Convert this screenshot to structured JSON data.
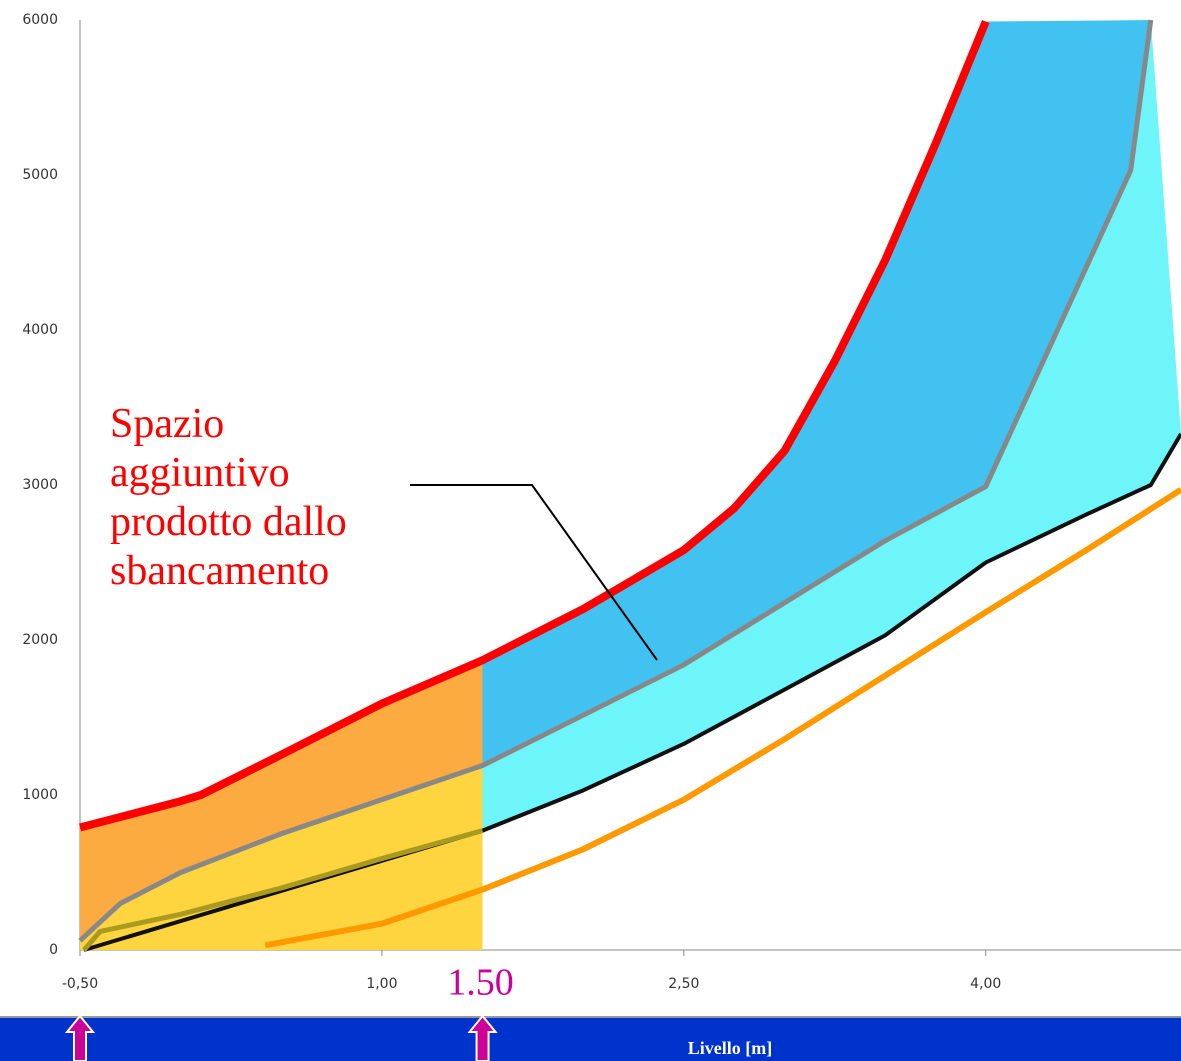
{
  "chart_data": {
    "type": "line",
    "xlabel": "Livello [m]",
    "xlim": [
      -0.5,
      4.97
    ],
    "ylim": [
      0,
      6000
    ],
    "xticks": [
      {
        "value": -0.5,
        "label": "-0,50"
      },
      {
        "value": 1.0,
        "label": "1,00"
      },
      {
        "value": 2.5,
        "label": "2,50"
      },
      {
        "value": 4.0,
        "label": "4,00"
      }
    ],
    "yticks": [
      0,
      1000,
      2000,
      3000,
      4000,
      5000,
      6000
    ],
    "grid": true,
    "series": [
      {
        "color": "#ff0000",
        "x": [
          -0.5,
          0,
          0.1,
          0.5,
          1.0,
          1.5,
          2.0,
          2.5,
          2.75,
          3.0,
          3.25,
          3.5,
          3.75,
          4.0
        ],
        "values": [
          790,
          960,
          1000,
          1260,
          1590,
          1870,
          2200,
          2580,
          2850,
          3220,
          3800,
          4450,
          5200,
          5990
        ]
      },
      {
        "color": "#888888",
        "x": [
          -0.5,
          -0.3,
          0,
          0.5,
          1.0,
          1.5,
          2.5,
          3.5,
          4.0,
          4.72,
          4.82
        ],
        "values": [
          60,
          300,
          500,
          750,
          970,
          1190,
          1840,
          2640,
          2990,
          5030,
          6000
        ]
      },
      {
        "color": "#111111",
        "x": [
          -0.48,
          1.5,
          2.0,
          2.5,
          3.0,
          3.5,
          4.0,
          4.5,
          4.82,
          4.97
        ],
        "values": [
          0,
          770,
          1030,
          1330,
          1680,
          2030,
          2500,
          2810,
          3000,
          3330
        ]
      },
      {
        "color": "#a99a20",
        "x": [
          -0.48,
          -0.4,
          0,
          0.5,
          1.0,
          1.5
        ],
        "values": [
          0,
          120,
          230,
          400,
          590,
          770
        ]
      },
      {
        "color": "#ff9900",
        "x": [
          0.42,
          1.0,
          1.5,
          2.0,
          2.5,
          3.0,
          3.5,
          4.0,
          4.5,
          4.97
        ],
        "values": [
          30,
          170,
          390,
          650,
          970,
          1360,
          1770,
          2180,
          2580,
          2970
        ]
      }
    ],
    "annotations": [
      {
        "text": "1.50",
        "x": 1.5
      },
      {
        "text": "Spazio\naggiuntivo\nprodotto dallo\nsbancamento"
      }
    ]
  }
}
